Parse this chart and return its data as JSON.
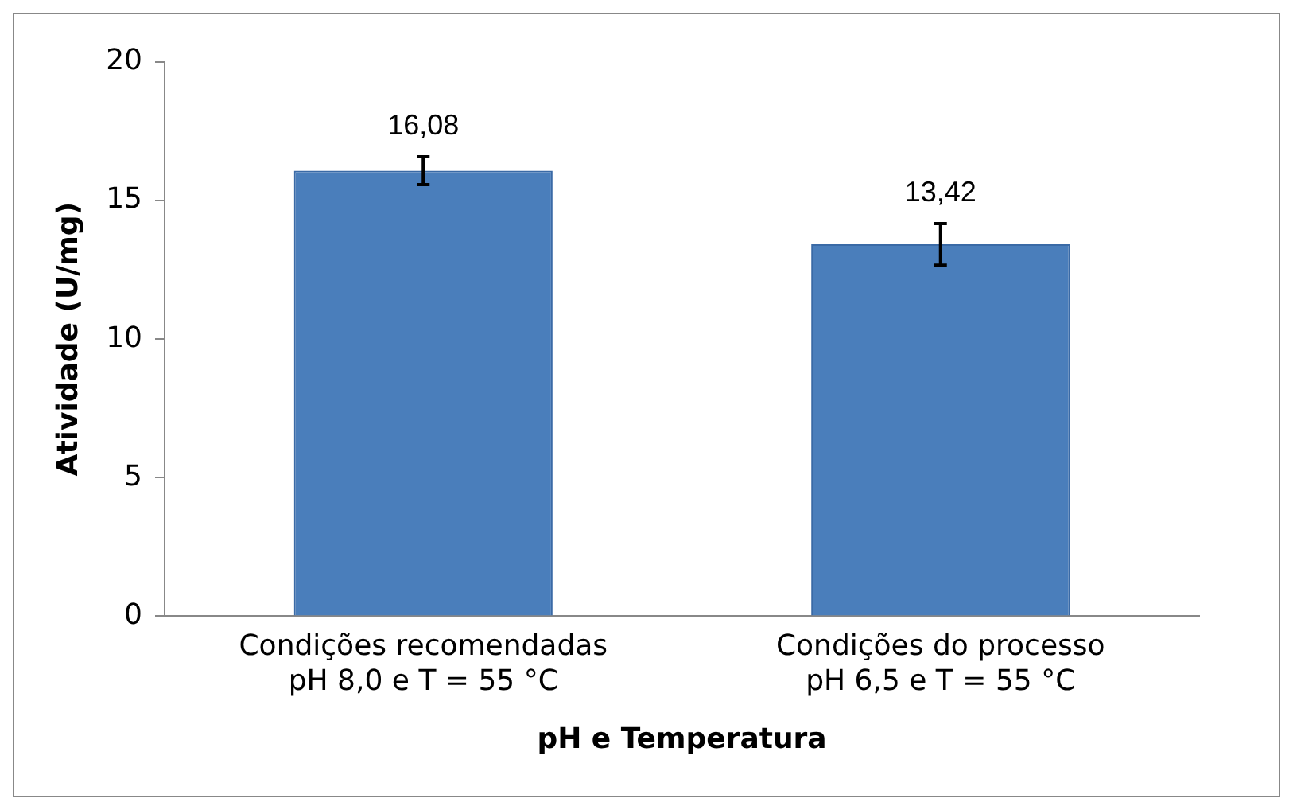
{
  "chart_data": {
    "type": "bar",
    "xlabel": "pH e Temperatura",
    "ylabel": "Atividade (U/mg)",
    "categories": [
      "Condições recomendadas\npH 8,0 e T = 55 °C",
      "Condições do processo\npH 6,5 e T = 55 °C"
    ],
    "values": [
      16.08,
      13.42
    ],
    "errors": [
      0.5,
      0.75
    ],
    "color": "#4a7ebb",
    "ylim": [
      0,
      20
    ],
    "yticks": [
      0,
      5,
      10,
      15,
      20
    ],
    "grid": false,
    "legend": false,
    "value_labels": [
      "16,08",
      "13,42"
    ]
  }
}
